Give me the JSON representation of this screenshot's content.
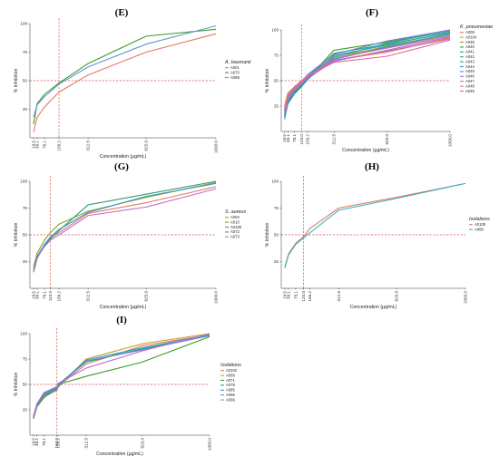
{
  "panels": [
    {
      "label": "(E)"
    },
    {
      "label": "(F)"
    },
    {
      "label": "(G)"
    },
    {
      "label": "(H)"
    },
    {
      "label": "(I)"
    }
  ],
  "chart_data": [
    {
      "type": "line",
      "panel": "(E)",
      "xlabel": "Concentration (µg/mL)",
      "ylabel": "% Inhibition",
      "x_ticks": [
        "19.5",
        "39.1",
        "78.1",
        "156.2",
        "312.5",
        "625.0",
        "1000.0"
      ],
      "y_ticks": [
        "25",
        "50",
        "75",
        "100"
      ],
      "xlim": [
        0,
        1000
      ],
      "ylim": [
        0,
        100
      ],
      "ref_x": 156.2,
      "ref_y": 50,
      "legend_title": "A. baumanii",
      "legend_position": "right",
      "x": [
        19.5,
        39.1,
        78.1,
        156.2,
        312.5,
        625.0,
        1000.0
      ],
      "series": [
        {
          "name": "A001",
          "color": "#e07a5f",
          "values": [
            5,
            18,
            27,
            40,
            55,
            75,
            91
          ]
        },
        {
          "name": "A070",
          "color": "#3a9d23",
          "values": [
            12,
            30,
            38,
            48,
            65,
            89,
            95
          ]
        },
        {
          "name": "A089",
          "color": "#6b8fd6",
          "values": [
            18,
            29,
            36,
            47,
            62,
            82,
            98
          ]
        }
      ]
    },
    {
      "type": "line",
      "panel": "(F)",
      "xlabel": "Concentration (µg/mL)",
      "ylabel": "% Inhibition",
      "x_ticks": [
        "19.5",
        "39.1",
        "78.1",
        "120.0",
        "156.2",
        "312.5",
        "625.0",
        "1000.0"
      ],
      "y_ticks": [
        "25",
        "50",
        "75",
        "100"
      ],
      "xlim": [
        0,
        1000
      ],
      "ylim": [
        0,
        100
      ],
      "ref_x": 120.0,
      "ref_y": 50,
      "legend_title": "K. pneumoniae",
      "legend_position": "top-right",
      "x": [
        19.5,
        39.1,
        78.1,
        120.0,
        156.2,
        312.5,
        625.0,
        1000.0
      ],
      "series": [
        {
          "name": "A008",
          "color": "#e07a5f",
          "values": [
            20,
            35,
            42,
            47,
            52,
            70,
            78,
            92
          ]
        },
        {
          "name": "A0104",
          "color": "#c9a227",
          "values": [
            25,
            38,
            44,
            50,
            55,
            74,
            83,
            95
          ]
        },
        {
          "name": "A036",
          "color": "#8aa12b",
          "values": [
            18,
            30,
            40,
            46,
            53,
            72,
            84,
            96
          ]
        },
        {
          "name": "A040",
          "color": "#3a9d23",
          "values": [
            15,
            28,
            38,
            45,
            52,
            80,
            88,
            99
          ]
        },
        {
          "name": "A041",
          "color": "#2e9e6a",
          "values": [
            22,
            33,
            41,
            48,
            54,
            77,
            86,
            97
          ]
        },
        {
          "name": "A042",
          "color": "#2aa79b",
          "values": [
            12,
            27,
            37,
            44,
            51,
            75,
            85,
            98
          ]
        },
        {
          "name": "A043",
          "color": "#27a3c4",
          "values": [
            16,
            30,
            39,
            47,
            55,
            73,
            87,
            99
          ]
        },
        {
          "name": "A044",
          "color": "#3b8fd6",
          "values": [
            14,
            29,
            40,
            46,
            52,
            71,
            83,
            96
          ]
        },
        {
          "name": "A045",
          "color": "#6b7fd6",
          "values": [
            19,
            31,
            42,
            49,
            56,
            76,
            89,
            100
          ]
        },
        {
          "name": "A046",
          "color": "#9b6fd6",
          "values": [
            21,
            34,
            43,
            48,
            53,
            69,
            80,
            93
          ]
        },
        {
          "name": "A047",
          "color": "#c46fd0",
          "values": [
            17,
            32,
            41,
            47,
            54,
            72,
            82,
            94
          ]
        },
        {
          "name": "A048",
          "color": "#d96aa8",
          "values": [
            23,
            36,
            44,
            50,
            55,
            68,
            74,
            90
          ]
        },
        {
          "name": "A049",
          "color": "#e06a8a",
          "values": [
            20,
            33,
            42,
            49,
            54,
            70,
            79,
            91
          ]
        }
      ]
    },
    {
      "type": "line",
      "panel": "(G)",
      "xlabel": "Concentration (µg/mL)",
      "ylabel": "% Inhibition",
      "x_ticks": [
        "19.5",
        "39.1",
        "78.1",
        "110.0",
        "156.2",
        "312.5",
        "625.0",
        "1000.0"
      ],
      "y_ticks": [
        "25",
        "50",
        "75",
        "100"
      ],
      "xlim": [
        0,
        1000
      ],
      "ylim": [
        0,
        100
      ],
      "ref_x": 110.0,
      "ref_y": 50,
      "legend_title": "S. aureus",
      "legend_position": "right",
      "x": [
        19.5,
        39.1,
        78.1,
        110.0,
        156.2,
        312.5,
        625.0,
        1000.0
      ],
      "series": [
        {
          "name": "A004",
          "color": "#e07a5f",
          "values": [
            18,
            30,
            40,
            47,
            52,
            70,
            80,
            95
          ]
        },
        {
          "name": "A010",
          "color": "#8aa12b",
          "values": [
            20,
            33,
            45,
            52,
            60,
            72,
            85,
            99
          ]
        },
        {
          "name": "A0105",
          "color": "#2e9e6a",
          "values": [
            15,
            28,
            40,
            46,
            54,
            78,
            88,
            100
          ]
        },
        {
          "name": "A072",
          "color": "#3b8fd6",
          "values": [
            17,
            30,
            41,
            48,
            55,
            71,
            86,
            98
          ]
        },
        {
          "name": "A073",
          "color": "#c46fd0",
          "values": [
            16,
            29,
            39,
            45,
            50,
            68,
            76,
            93
          ]
        }
      ]
    },
    {
      "type": "line",
      "panel": "(H)",
      "xlabel": "Concentration (µg/mL)",
      "ylabel": "% Inhibition",
      "x_ticks": [
        "19.5",
        "39.1",
        "78.1",
        "120.0",
        "156.2",
        "312.5",
        "625.0",
        "1000.0"
      ],
      "y_ticks": [
        "25",
        "50",
        "75",
        "100"
      ],
      "xlim": [
        0,
        1000
      ],
      "ylim": [
        0,
        100
      ],
      "ref_x": 120.0,
      "ref_y": 50,
      "legend_title": "Isolations",
      "legend_position": "right",
      "x": [
        19.5,
        39.1,
        78.1,
        120.0,
        156.2,
        312.5,
        625.0,
        1000.0
      ],
      "series": [
        {
          "name": "A0105",
          "color": "#e07a5f",
          "values": [
            20,
            32,
            42,
            48,
            56,
            75,
            85,
            98
          ]
        },
        {
          "name": "A089",
          "color": "#3bb3c4",
          "values": [
            19,
            31,
            41,
            47,
            52,
            73,
            84,
            98
          ]
        }
      ]
    },
    {
      "type": "line",
      "panel": "(I)",
      "xlabel": "Concentration (µg/mL)",
      "ylabel": "% Inhibition",
      "x_ticks": [
        "19.5",
        "39.1",
        "78.1",
        "150.0",
        "156.2",
        "312.5",
        "625.0",
        "1000.0"
      ],
      "y_ticks": [
        "25",
        "50",
        "75",
        "100"
      ],
      "xlim": [
        0,
        1000
      ],
      "ylim": [
        0,
        100
      ],
      "ref_x": 150.0,
      "ref_y": 50,
      "legend_title": "Isolations",
      "legend_position": "right",
      "x": [
        19.5,
        39.1,
        78.1,
        150.0,
        156.2,
        312.5,
        625.0,
        1000.0
      ],
      "series": [
        {
          "name": "A0102",
          "color": "#e07a5f",
          "values": [
            18,
            30,
            40,
            45,
            48,
            70,
            88,
            99
          ]
        },
        {
          "name": "A068",
          "color": "#c9a227",
          "values": [
            17,
            29,
            38,
            44,
            47,
            75,
            90,
            100
          ]
        },
        {
          "name": "A071",
          "color": "#3a9d23",
          "values": [
            16,
            28,
            37,
            46,
            50,
            58,
            72,
            97
          ]
        },
        {
          "name": "A078",
          "color": "#2e9e6a",
          "values": [
            19,
            31,
            41,
            47,
            50,
            72,
            85,
            98
          ]
        },
        {
          "name": "A085",
          "color": "#27a3c4",
          "values": [
            18,
            30,
            40,
            46,
            49,
            74,
            86,
            99
          ]
        },
        {
          "name": "A095",
          "color": "#6b7fd6",
          "values": [
            17,
            29,
            39,
            45,
            48,
            73,
            84,
            98
          ]
        },
        {
          "name": "A096",
          "color": "#c46fd0",
          "values": [
            18,
            31,
            42,
            48,
            51,
            66,
            83,
            100
          ]
        }
      ]
    }
  ]
}
